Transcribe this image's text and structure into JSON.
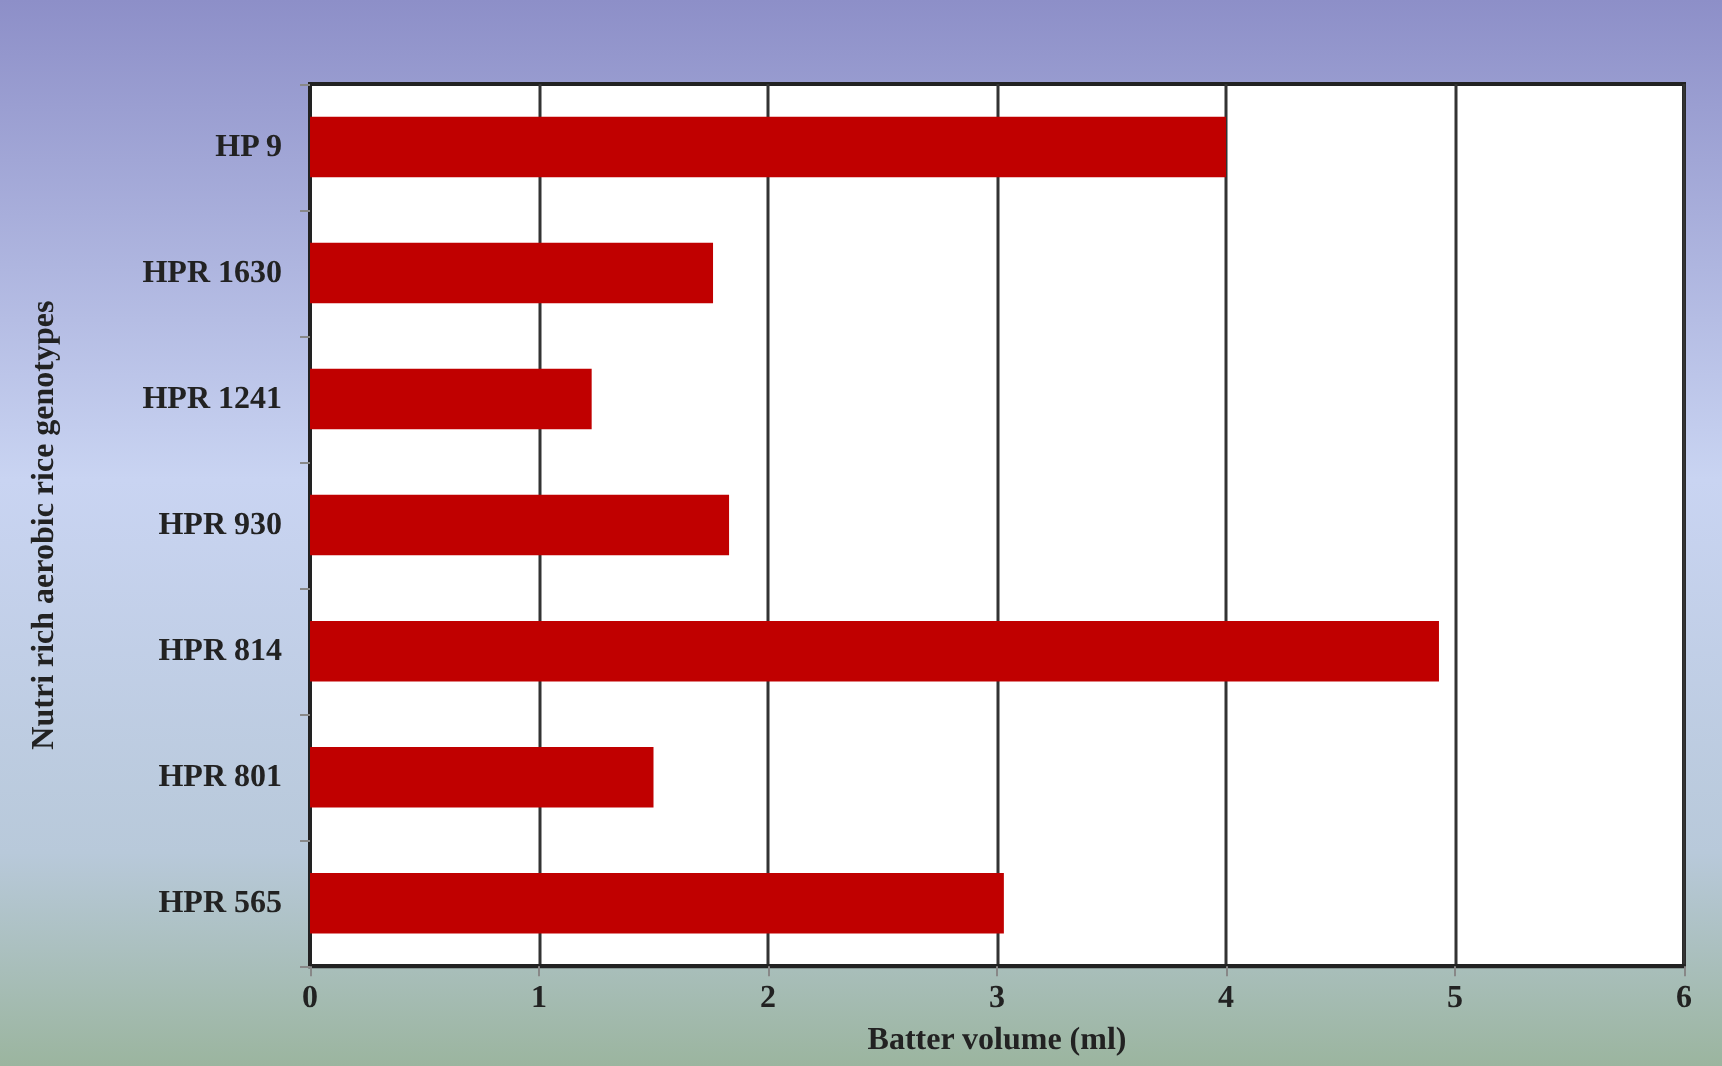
{
  "chart_data": {
    "type": "bar",
    "orientation": "horizontal",
    "xlabel": "Batter volume (ml)",
    "ylabel": "Nutri rich aerobic rice genotypes",
    "categories": [
      "HP 9",
      "HPR 1630",
      "HPR 1241",
      "HPR 930",
      "HPR 814",
      "HPR 801",
      "HPR 565"
    ],
    "values": [
      4.0,
      1.76,
      1.23,
      1.83,
      4.93,
      1.5,
      3.03
    ],
    "color": "#c00000",
    "xlim": [
      0,
      6
    ],
    "xticks": [
      0,
      1,
      2,
      3,
      4,
      5,
      6
    ],
    "grid": "x"
  }
}
